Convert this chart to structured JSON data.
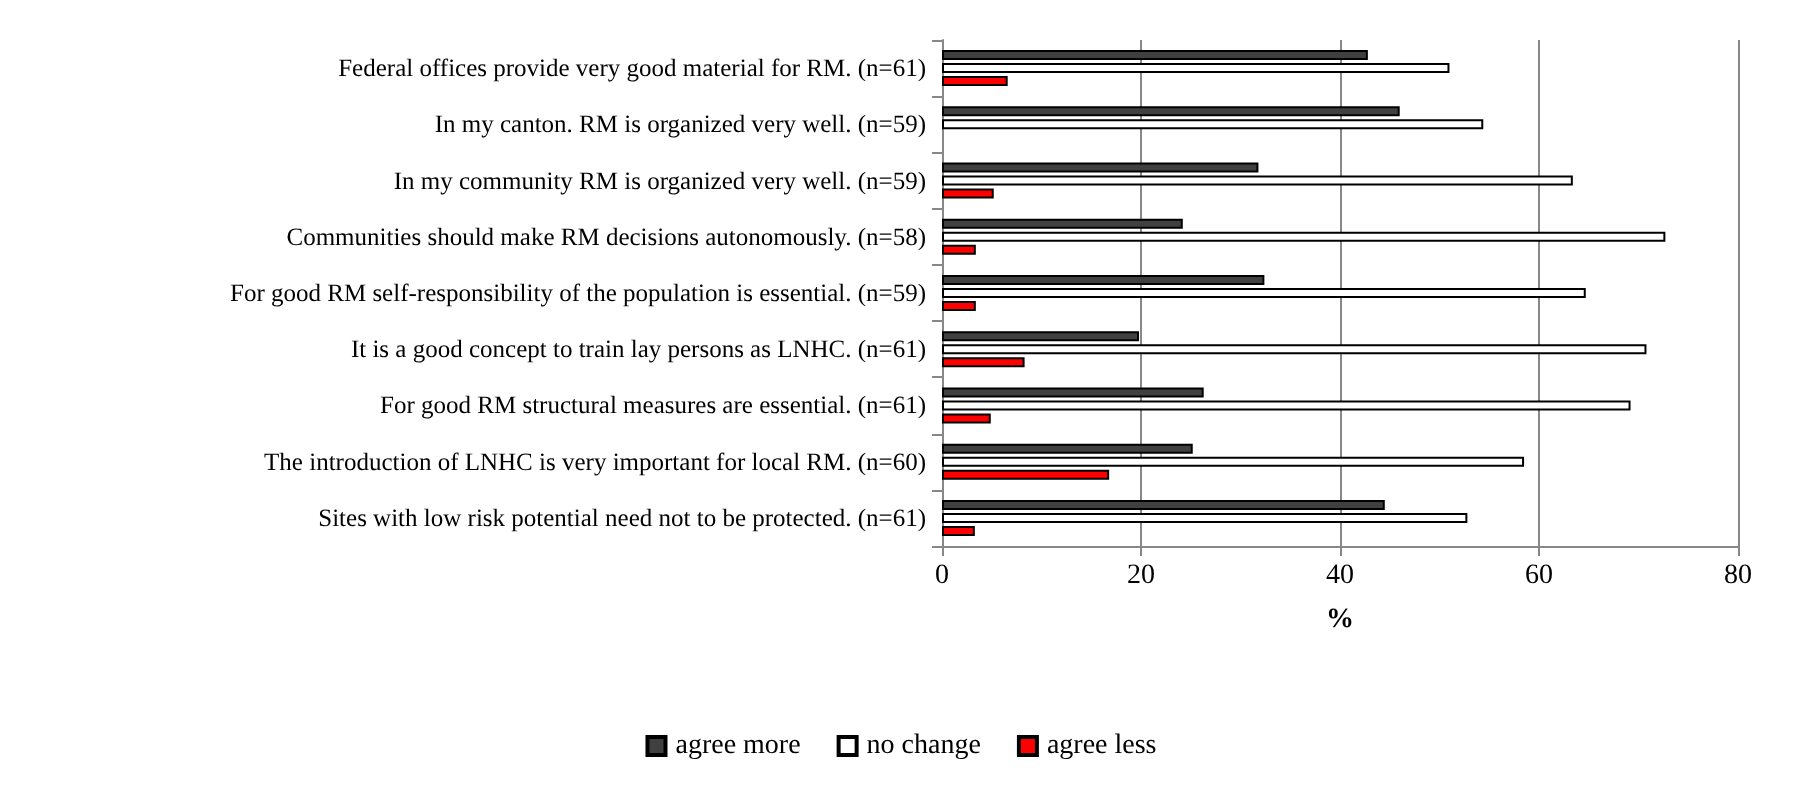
{
  "chart_data": {
    "type": "bar",
    "orientation": "horizontal",
    "xlabel": "%",
    "categories": [
      "Federal offices provide very good material for RM. (n=61)",
      "In my canton. RM is organized very well. (n=59)",
      "In my community RM is organized very well. (n=59)",
      "Communities should make RM decisions autonomously. (n=58)",
      "For good RM self-responsibility of the population is essential. (n=59)",
      "It is a good concept to train lay persons as LNHC. (n=61)",
      "For good RM structural measures are essential. (n=61)",
      "The introduction of LNHC is very important for local RM. (n=60)",
      "Sites with low risk potential need not to be protected. (n=61)"
    ],
    "series": [
      {
        "name": "agree more",
        "color": "#404040",
        "values": [
          42.8,
          46.0,
          31.8,
          24.2,
          32.4,
          19.8,
          26.3,
          25.2,
          44.5
        ]
      },
      {
        "name": "no change",
        "color": "#ffffff",
        "values": [
          51.0,
          54.4,
          63.4,
          72.7,
          64.7,
          70.8,
          69.2,
          58.5,
          52.8
        ]
      },
      {
        "name": "agree less",
        "color": "#ff0000",
        "values": [
          6.6,
          null,
          5.2,
          3.4,
          3.4,
          8.3,
          4.9,
          16.8,
          3.3
        ]
      }
    ],
    "xlim": [
      0,
      80
    ],
    "xticks": [
      0,
      20,
      40,
      60,
      80
    ],
    "grid": "x",
    "legend": "bottom"
  }
}
